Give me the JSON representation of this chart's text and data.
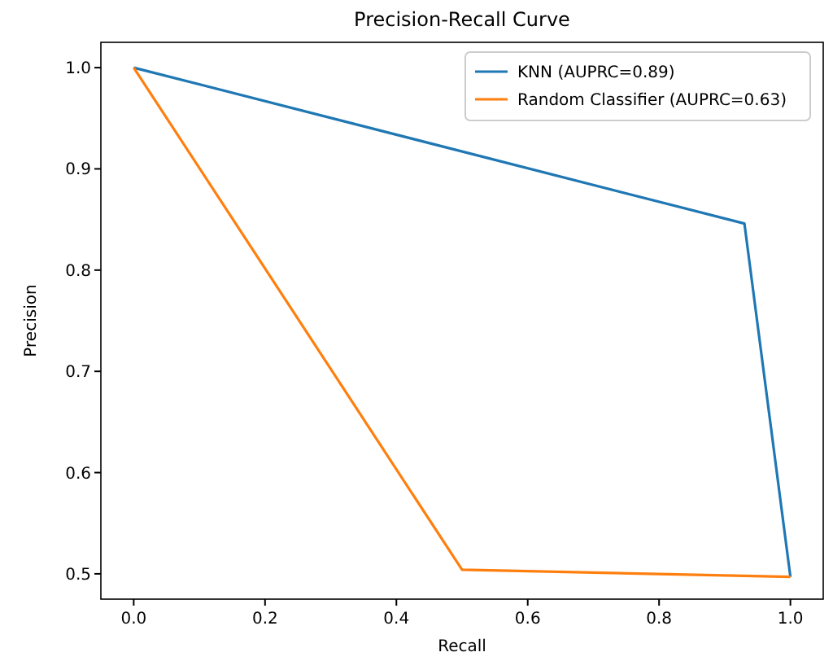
{
  "chart_data": {
    "type": "line",
    "title": "Precision-Recall Curve",
    "xlabel": "Recall",
    "ylabel": "Precision",
    "xlim": [
      -0.05,
      1.05
    ],
    "ylim": [
      0.475,
      1.025
    ],
    "xticks": [
      {
        "value": 0,
        "label": "0.0"
      },
      {
        "value": 0.2,
        "label": "0.2"
      },
      {
        "value": 0.4,
        "label": "0.4"
      },
      {
        "value": 0.6,
        "label": "0.6"
      },
      {
        "value": 0.8,
        "label": "0.8"
      },
      {
        "value": 1,
        "label": "1.0"
      }
    ],
    "yticks": [
      {
        "value": 0.5,
        "label": "0.5"
      },
      {
        "value": 0.6,
        "label": "0.6"
      },
      {
        "value": 0.7,
        "label": "0.7"
      },
      {
        "value": 0.8,
        "label": "0.8"
      },
      {
        "value": 0.9,
        "label": "0.9"
      },
      {
        "value": 1,
        "label": "1.0"
      }
    ],
    "grid": false,
    "legend": "top right",
    "marker": "none",
    "line_style": "solid",
    "series": [
      {
        "name": "KNN (AUPRC=0.89)",
        "color": "#1f77b4",
        "x": [
          0,
          0.93,
          1
        ],
        "values": [
          1,
          0.846,
          0.497
        ]
      },
      {
        "name": "Random Classifier (AUPRC=0.63)",
        "color": "#ff7f0e",
        "x": [
          0,
          0.5,
          1
        ],
        "values": [
          1,
          0.504,
          0.497
        ]
      }
    ]
  }
}
